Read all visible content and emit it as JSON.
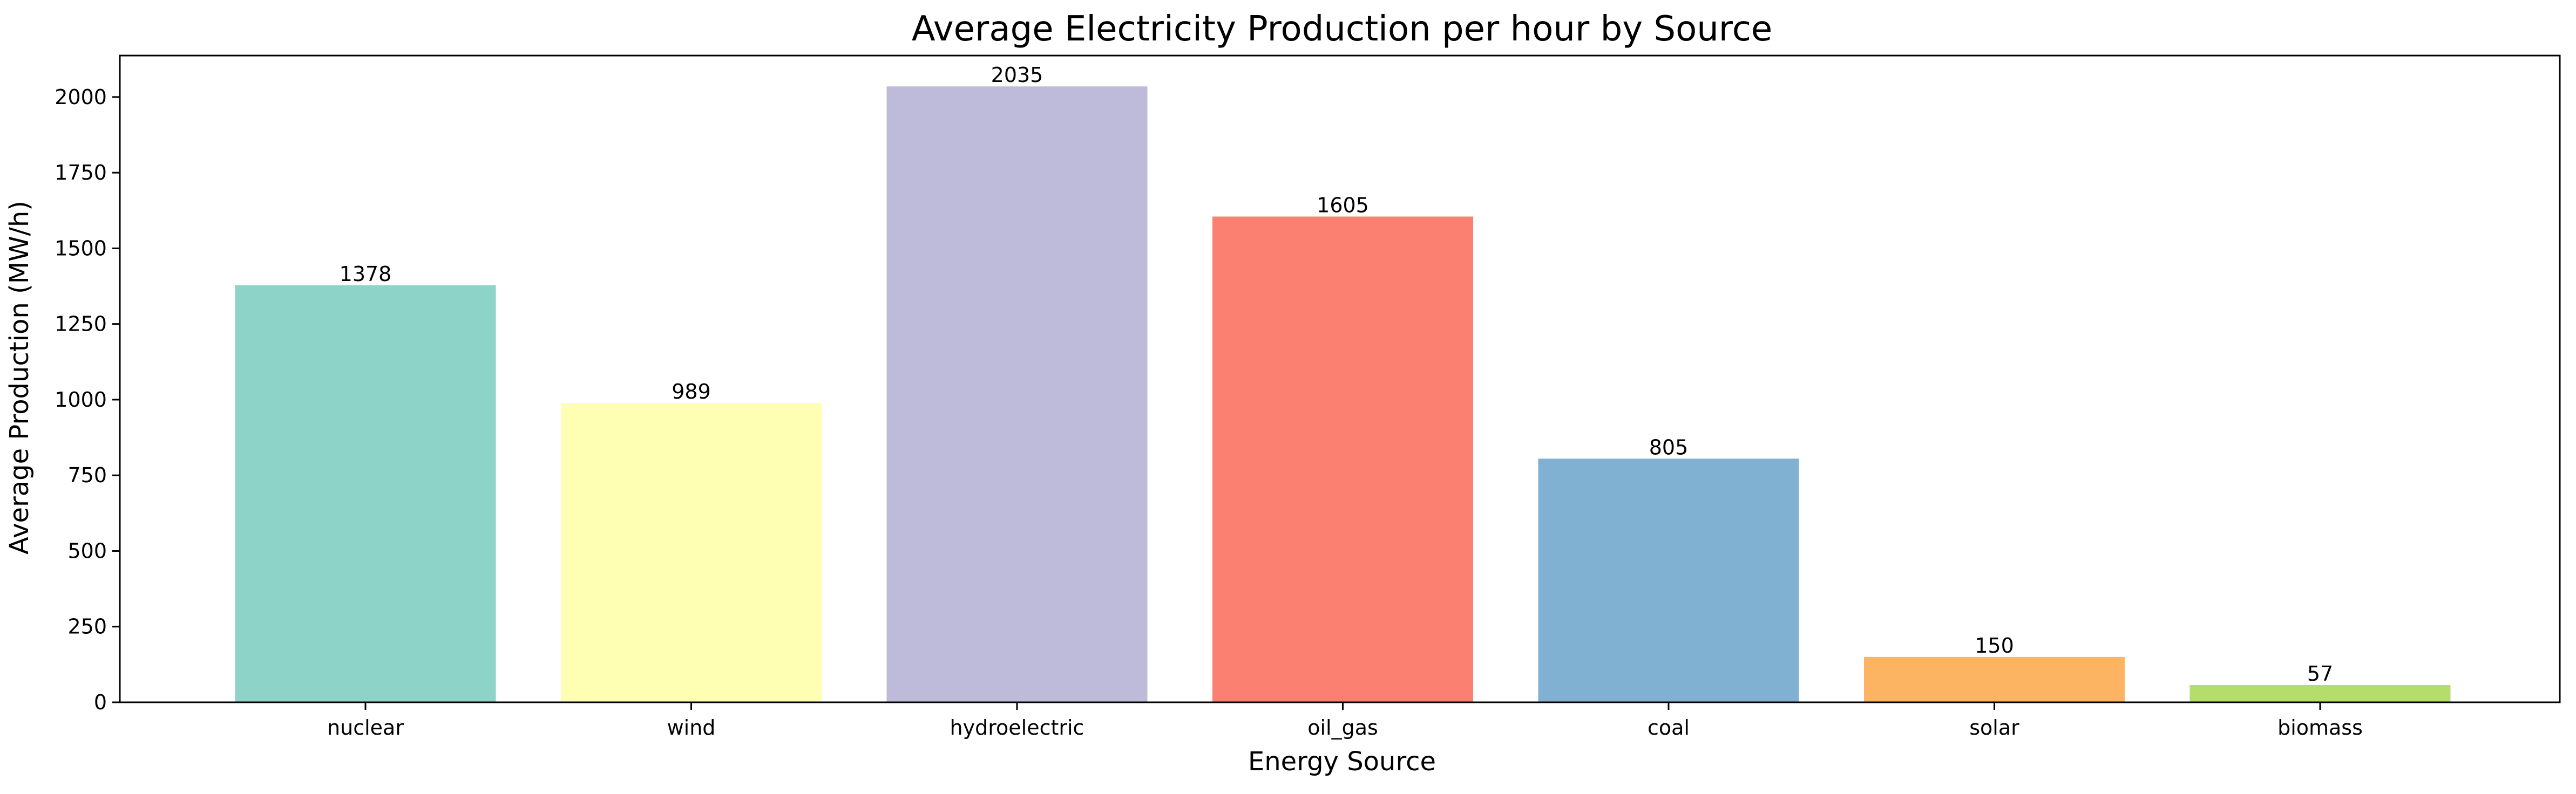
{
  "chart_data": {
    "type": "bar",
    "title": "Average Electricity Production per hour by Source",
    "xlabel": "Energy Source",
    "ylabel": "Average Production (MW/h)",
    "categories": [
      "nuclear",
      "wind",
      "hydroelectric",
      "oil_gas",
      "coal",
      "solar",
      "biomass"
    ],
    "values": [
      1378,
      989,
      2035,
      1605,
      805,
      150,
      57
    ],
    "value_labels": [
      "1378",
      "989",
      "2035",
      "1605",
      "805",
      "150",
      "57"
    ],
    "colors": [
      "#8dd3c7",
      "#ffffb3",
      "#bebada",
      "#fb8072",
      "#80b1d3",
      "#fdb462",
      "#b3de69"
    ],
    "ylim": [
      0,
      2137
    ],
    "yticks": [
      0,
      250,
      500,
      750,
      1000,
      1250,
      1500,
      1750,
      2000
    ],
    "ytick_labels": [
      "0",
      "250",
      "500",
      "750",
      "1000",
      "1250",
      "1500",
      "1750",
      "2000"
    ],
    "grid": false,
    "legend": "none"
  }
}
